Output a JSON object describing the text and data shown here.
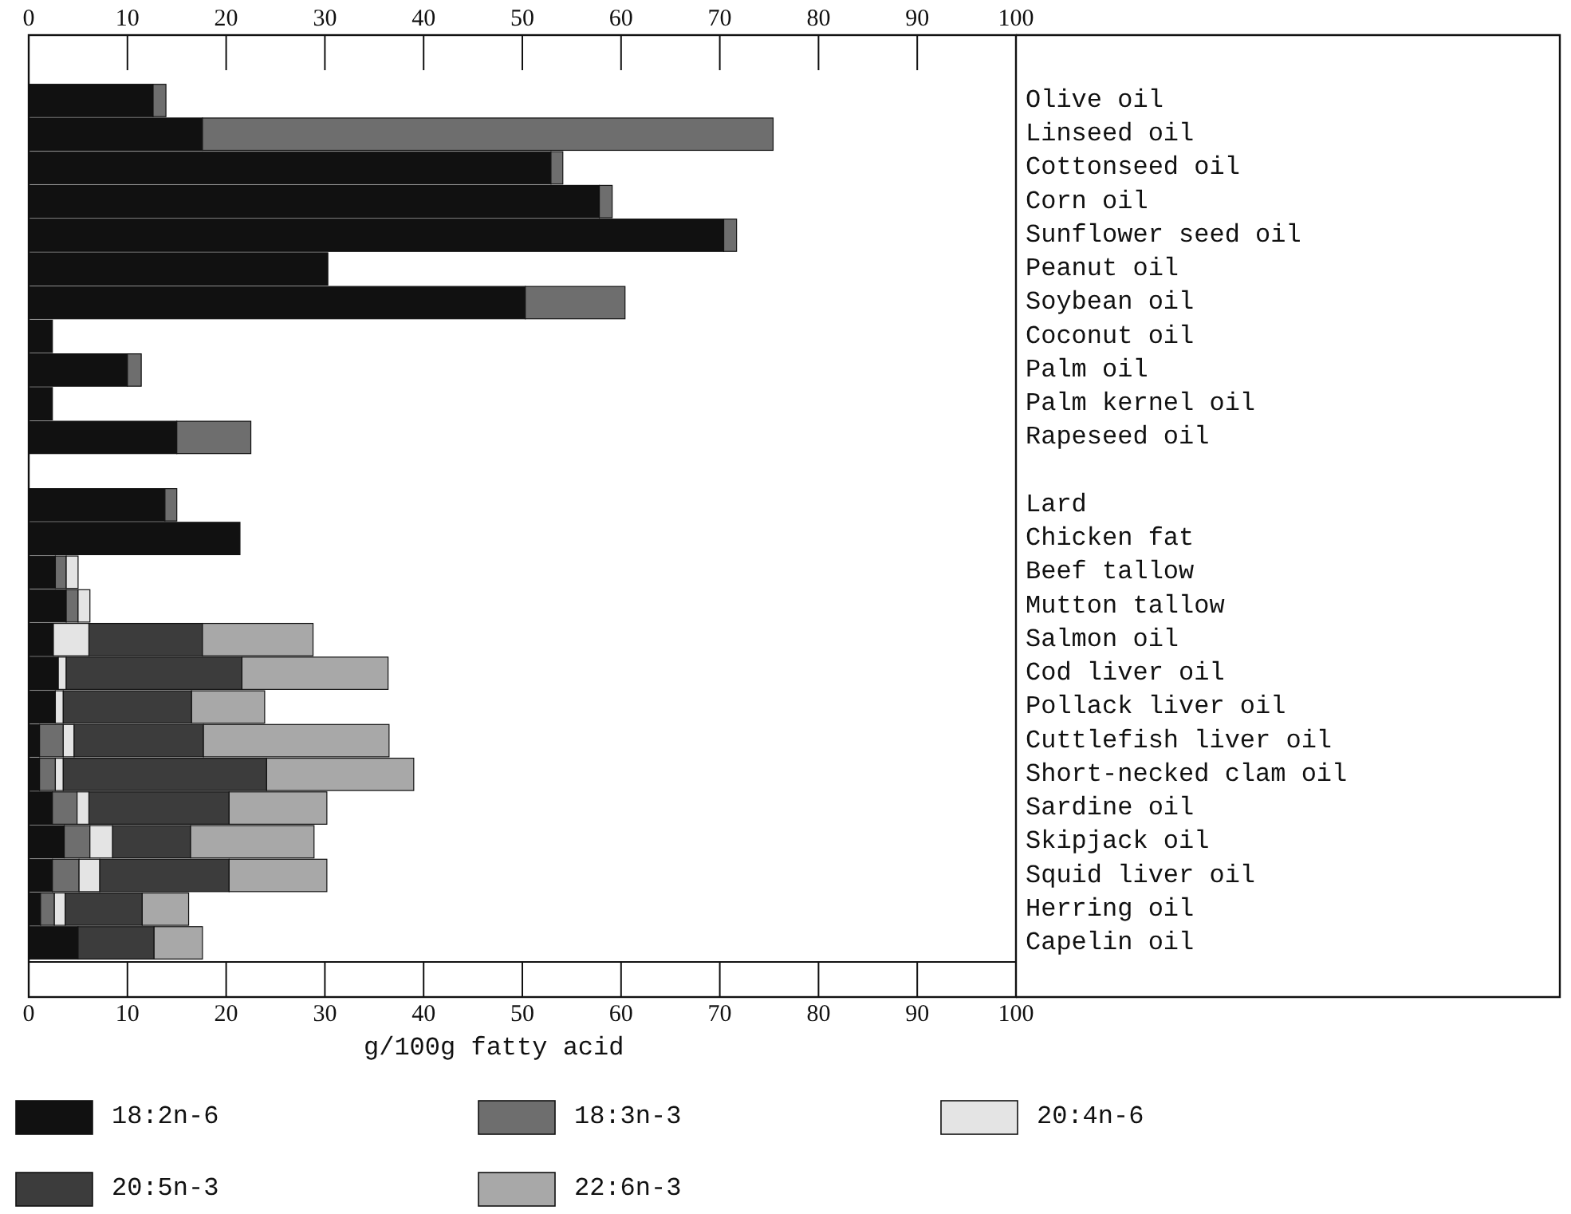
{
  "chart_data": {
    "type": "bar",
    "orientation": "horizontal",
    "stacked": true,
    "categories": [
      "Olive oil",
      "Linseed oil",
      "Cottonseed oil",
      "Corn oil",
      "Sunflower seed oil",
      "Peanut oil",
      "Soybean oil",
      "Coconut oil",
      "Palm oil",
      "Palm kernel oil",
      "Rapeseed oil",
      null,
      "Lard",
      "Chicken fat",
      "Beef tallow",
      "Mutton tallow",
      "Salmon oil",
      "Cod liver oil",
      "Pollack liver oil",
      "Cuttlefish liver oil",
      "Short-necked clam oil",
      "Sardine oil",
      "Skipjack oil",
      "Squid liver oil",
      "Herring oil",
      "Capelin oil"
    ],
    "series": [
      {
        "name": "18:2n-6",
        "color": "#111111",
        "values": [
          12.6,
          17.6,
          52.9,
          57.8,
          70.4,
          30.3,
          50.3,
          2.4,
          10.0,
          2.4,
          15.0,
          null,
          13.8,
          21.4,
          2.7,
          3.8,
          2.5,
          3.0,
          2.7,
          1.1,
          1.1,
          2.4,
          3.6,
          2.4,
          1.2,
          5.0
        ]
      },
      {
        "name": "18:3n-3",
        "color": "#6e6e6e",
        "values": [
          1.3,
          57.8,
          1.2,
          1.3,
          1.3,
          null,
          10.1,
          null,
          1.4,
          null,
          7.5,
          null,
          1.2,
          null,
          1.1,
          1.2,
          null,
          null,
          null,
          2.4,
          1.6,
          2.5,
          2.6,
          2.7,
          1.4,
          null
        ]
      },
      {
        "name": "20:4n-6",
        "color": "#e4e4e4",
        "values": [
          null,
          null,
          null,
          null,
          null,
          null,
          null,
          null,
          null,
          null,
          null,
          null,
          null,
          null,
          1.2,
          1.2,
          3.6,
          0.8,
          0.8,
          1.1,
          0.8,
          1.2,
          2.3,
          2.1,
          1.1,
          null
        ]
      },
      {
        "name": "20:5n-3",
        "color": "#3c3c3c",
        "values": [
          null,
          null,
          null,
          null,
          null,
          null,
          null,
          null,
          null,
          null,
          null,
          null,
          null,
          null,
          null,
          null,
          11.5,
          17.8,
          13.0,
          13.1,
          20.6,
          14.2,
          7.9,
          13.1,
          7.8,
          7.7
        ]
      },
      {
        "name": "22:6n-3",
        "color": "#a8a8a8",
        "values": [
          null,
          null,
          null,
          null,
          null,
          null,
          null,
          null,
          null,
          null,
          null,
          null,
          null,
          null,
          null,
          null,
          11.2,
          14.8,
          7.4,
          18.8,
          14.9,
          9.9,
          12.5,
          9.9,
          4.7,
          4.9
        ]
      }
    ],
    "xlim": [
      0,
      100
    ],
    "xticks": [
      0,
      10,
      20,
      30,
      40,
      50,
      60,
      70,
      80,
      90,
      100
    ],
    "x2lim": [
      0,
      100
    ],
    "x2ticks": [
      0,
      10,
      20,
      30,
      40,
      50,
      60,
      70,
      80,
      90,
      100
    ],
    "xlabel": "g/100g fatty acid",
    "grid": false,
    "legend": "bottom"
  }
}
